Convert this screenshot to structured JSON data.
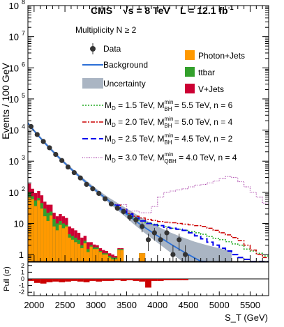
{
  "chart_data": {
    "type": "line",
    "header": {
      "experiment": "CMS",
      "energy": "√s = 8 TeV",
      "lumi_prefix": "L = 12.1 fb",
      "lumi_sup": "-1"
    },
    "annotation": "Multiplicity N ≥ 2",
    "xlabel": "S_T (GeV)",
    "ylabel": "Events / 100 GeV",
    "pull_label": "Pull (σ)",
    "x_range": [
      1900,
      5800
    ],
    "y_range_log": [
      0.6,
      100000000
    ],
    "x_ticks": [
      2000,
      2500,
      3000,
      3500,
      4000,
      4500,
      5000,
      5500
    ],
    "y_ticks": [
      {
        "v": 1,
        "label": "1"
      },
      {
        "v": 10,
        "label": "10"
      },
      {
        "v": 100,
        "label": "10",
        "sup": "2"
      },
      {
        "v": 1000,
        "label": "10",
        "sup": "3"
      },
      {
        "v": 10000,
        "label": "10",
        "sup": "4"
      },
      {
        "v": 100000,
        "label": "10",
        "sup": "5"
      },
      {
        "v": 1000000,
        "label": "10",
        "sup": "6"
      },
      {
        "v": 10000000,
        "label": "10",
        "sup": "7"
      },
      {
        "v": 100000000,
        "label": "10",
        "sup": "8"
      }
    ],
    "pull_range": [
      -2.5,
      2.5
    ],
    "pull_ticks": [
      -2,
      -1,
      0,
      1,
      2
    ],
    "colors": {
      "photon_jets": "#ff9900",
      "ttbar": "#33a02c",
      "vjets": "#cc0033",
      "background": "#2b6fd6",
      "uncertainty": "#aab5c3",
      "data": "#333333",
      "s1": "#22aa22",
      "s2": "#cc0000",
      "s3": "#0000ee",
      "s4": "#aa44aa"
    },
    "legend": {
      "data": "Data",
      "background": "Background",
      "uncertainty": "Uncertainty",
      "photon_jets": "Photon+Jets",
      "ttbar": "ttbar",
      "vjets": "V+Jets",
      "signals": [
        {
          "md": "M",
          "md_sub": "D",
          "md_val": " = 1.5 TeV, M",
          "bh_sup": "min",
          "bh_sub": "BH",
          "rest": " = 5.5 TeV, n = 6"
        },
        {
          "md": "M",
          "md_sub": "D",
          "md_val": " = 2.0 TeV, M",
          "bh_sup": "min",
          "bh_sub": "BH",
          "rest": " = 5.0 TeV, n = 4"
        },
        {
          "md": "M",
          "md_sub": "D",
          "md_val": " = 2.5 TeV, M",
          "bh_sup": "min",
          "bh_sub": "BH",
          "rest": " = 4.5 TeV, n = 2"
        },
        {
          "md": "M",
          "md_sub": "D",
          "md_val": " = 3.0 TeV, M",
          "bh_sup": "min",
          "bh_sub": "QBH",
          "rest": " = 4.0 TeV, n = 4"
        }
      ]
    },
    "bin_edges": [
      1900,
      1950,
      2000,
      2050,
      2100,
      2150,
      2200,
      2250,
      2300,
      2350,
      2400,
      2450,
      2500,
      2550,
      2600,
      2650,
      2700,
      2750,
      2800,
      2850,
      2900,
      2950,
      3000,
      3050,
      3100,
      3150,
      3200,
      3250,
      3300,
      3350,
      3400,
      3450,
      3500,
      3550,
      3600,
      3650,
      3700,
      3750,
      3800,
      3850,
      3900,
      3950,
      4000
    ],
    "stack": {
      "photon_jets": [
        70,
        60,
        36,
        55,
        30,
        17,
        12,
        18,
        8,
        6,
        9,
        7,
        8,
        3.5,
        3,
        2.5,
        2.2,
        1.6,
        2.3,
        1.2,
        1.8,
        1.5,
        1.5,
        1.2,
        1,
        1,
        0.8,
        0.7,
        0.7,
        1.4,
        1.4,
        0.6,
        0.6,
        0.6,
        0.6,
        0.6,
        1.1,
        1.1,
        0.6,
        0.6,
        0.6,
        0.6
      ],
      "ttbar": [
        100,
        75,
        55,
        65,
        45,
        30,
        22,
        24,
        14,
        10,
        12,
        10,
        9,
        4.5,
        4,
        3.5,
        3,
        2,
        2.8,
        1.5,
        2,
        1.7,
        1.7,
        1.3,
        1.1,
        1.1,
        0.9,
        0.8,
        0.8,
        1.5,
        1.5,
        0.6,
        0.6,
        0.6,
        0.6,
        0.6,
        1.1,
        1.1,
        0.6,
        0.6,
        0.6,
        0.6
      ],
      "vjets": [
        190,
        130,
        95,
        110,
        80,
        50,
        40,
        40,
        22,
        17,
        20,
        17,
        15,
        8,
        7,
        6,
        5,
        3.5,
        4,
        2.5,
        2.5,
        2.1,
        2,
        1.6,
        1.4,
        1.3,
        1.1,
        1,
        0.9,
        1.6,
        1.6,
        0.6,
        0.6,
        0.6,
        0.6,
        0.6,
        1.1,
        1.1,
        0.6,
        0.6,
        0.6,
        0.6
      ]
    },
    "background": {
      "x": [
        1900,
        2000,
        2100,
        2200,
        2300,
        2400,
        2500,
        2600,
        2700,
        2800,
        2900,
        3000,
        3100,
        3200,
        3300,
        3400,
        3500,
        3600,
        3700,
        3800,
        3900,
        4000,
        4100,
        4200,
        4300,
        4400,
        4500,
        4600,
        4700,
        4800
      ],
      "y": [
        17000,
        9500,
        5600,
        3400,
        2100,
        1330,
        860,
        560,
        370,
        248,
        168,
        115,
        80,
        56,
        39,
        28,
        20,
        14,
        10,
        7.3,
        5.4,
        4,
        3,
        2.25,
        1.7,
        1.3,
        1,
        0.78,
        0.61,
        0.48
      ]
    },
    "uncertainty": {
      "x": [
        1900,
        2000,
        2200,
        2400,
        2600,
        2800,
        3000,
        3200,
        3400,
        3500,
        3600,
        3800,
        4000,
        4200,
        4400,
        4600,
        4800,
        5000,
        5200
      ],
      "lo": [
        15500,
        8600,
        3050,
        1190,
        500,
        218,
        100,
        47,
        22,
        15,
        10,
        4.8,
        2.4,
        1.2,
        0.6,
        0.3,
        0.15,
        0.1,
        0.1
      ],
      "hi": [
        18500,
        10500,
        3800,
        1480,
        630,
        283,
        135,
        70,
        40,
        30,
        23,
        13,
        8,
        5.2,
        3.6,
        2.6,
        2.0,
        1.6,
        1.3
      ]
    },
    "data_points": {
      "x": [
        1950,
        2050,
        2150,
        2250,
        2350,
        2450,
        2550,
        2650,
        2750,
        2850,
        2950,
        3050,
        3150,
        3250,
        3350,
        3450,
        3550,
        3650,
        3750,
        3850,
        3950,
        4050,
        4150,
        4250,
        4350,
        4450
      ],
      "y": [
        13000,
        7200,
        4300,
        2700,
        1650,
        1050,
        650,
        430,
        290,
        180,
        130,
        92,
        62,
        42,
        31,
        24,
        16,
        13,
        8,
        3,
        5,
        3,
        5,
        1,
        3,
        1
      ],
      "err": [
        0,
        0,
        0,
        0,
        0,
        0,
        0,
        0,
        0,
        0,
        0,
        0,
        0,
        0,
        5.6,
        4.9,
        4,
        3.6,
        2.8,
        1.7,
        2.2,
        1.7,
        2.2,
        1,
        1.7,
        1
      ]
    },
    "signal_curves": [
      {
        "name": "M_D = 1.5 TeV, M_BH^min = 5.5 TeV, n = 6",
        "x": [
          3300,
          3400,
          3500,
          3600,
          3700,
          3800,
          3900,
          4000,
          4100,
          4200,
          4300,
          4400,
          4500,
          4600,
          4700,
          4800,
          4900,
          5000,
          5100,
          5200,
          5300,
          5400,
          5500,
          5600,
          5700,
          5800
        ],
        "y": [
          39,
          28,
          20,
          15,
          12,
          10.5,
          9.5,
          8.5,
          7.8,
          7,
          6.5,
          6,
          5.5,
          5,
          4.5,
          3.8,
          3.3,
          3,
          2.6,
          2.2,
          2,
          1.5,
          1.3,
          1.1,
          0.9,
          0.8
        ]
      },
      {
        "name": "M_D = 2.0 TeV, M_BH^min = 5.0 TeV, n = 4",
        "x": [
          3300,
          3400,
          3500,
          3600,
          3700,
          3800,
          3900,
          4000,
          4100,
          4200,
          4300,
          4400,
          4500,
          4600,
          4700,
          4800,
          4900,
          5000,
          5100,
          5200,
          5300,
          5400,
          5500,
          5600,
          5700,
          5800
        ],
        "y": [
          39,
          28,
          21,
          17,
          15,
          13.5,
          12.5,
          11.5,
          11,
          10.5,
          10,
          9.5,
          9,
          8.5,
          8,
          7,
          6,
          5,
          4.3,
          3.5,
          2.8,
          2,
          1.4,
          1,
          0.8,
          0.7
        ]
      },
      {
        "name": "M_D = 2.5 TeV, M_BH^min = 4.5 TeV, n = 2",
        "x": [
          3300,
          3400,
          3500,
          3600,
          3700,
          3800,
          3900,
          4000,
          4100,
          4200,
          4300,
          4400,
          4500,
          4600,
          4700,
          4800,
          4900,
          5000,
          5100,
          5200,
          5300,
          5400,
          5500,
          5600,
          5700,
          5800
        ],
        "y": [
          39,
          28,
          20,
          15,
          12,
          10,
          9,
          8.5,
          7.5,
          7,
          6.5,
          6,
          5,
          4,
          3.2,
          2.5,
          2,
          1.6,
          1.3,
          1,
          0.8,
          0.7,
          0.6,
          0.6,
          0.6,
          0.6
        ]
      },
      {
        "name": "M_D = 3.0 TeV, M_QBH^min = 4.0 TeV, n = 4",
        "x": [
          3300,
          3500,
          3700,
          3900,
          4000,
          4100,
          4200,
          4300,
          4400,
          4500,
          4600,
          4700,
          4800,
          4900,
          5000,
          5100,
          5200,
          5300,
          5400,
          5500,
          5600,
          5700,
          5800
        ],
        "y": [
          40,
          25,
          22,
          35,
          70,
          100,
          110,
          120,
          130,
          150,
          170,
          180,
          200,
          230,
          280,
          320,
          300,
          220,
          150,
          100,
          70,
          45,
          30
        ]
      }
    ],
    "pull": {
      "x": [
        1950,
        2050,
        2150,
        2250,
        2350,
        2450,
        2550,
        2650,
        2750,
        2850,
        2950,
        3050,
        3150,
        3250,
        3350,
        3450,
        3550,
        3650,
        3750,
        3850,
        3950,
        4050,
        4150,
        4250,
        4350,
        4450
      ],
      "y": [
        -0.3,
        -0.6,
        -0.7,
        -0.5,
        -0.4,
        -0.5,
        -0.4,
        -0.3,
        -0.4,
        -0.5,
        -0.3,
        -0.4,
        -0.3,
        -0.3,
        -0.2,
        -0.3,
        -0.2,
        -0.3,
        -0.4,
        -1.3,
        -0.3,
        -0.3,
        -0.2,
        -0.2,
        -0.2,
        -0.2
      ]
    }
  }
}
